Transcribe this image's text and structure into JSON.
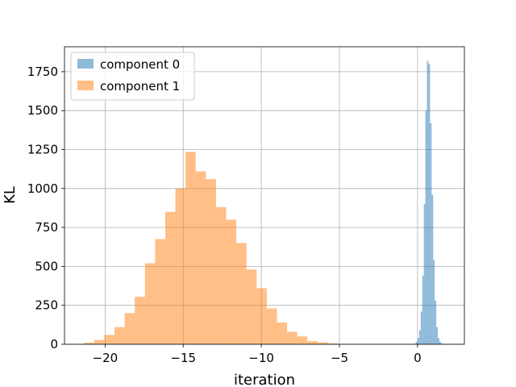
{
  "chart_data": {
    "type": "bar",
    "title": "",
    "xlabel": "iteration",
    "ylabel": "KL",
    "xlim": [
      -22.6,
      3.0
    ],
    "ylim": [
      0,
      1910
    ],
    "xticks": [
      -20,
      -15,
      -10,
      -5,
      0
    ],
    "xtick_labels": [
      "−20",
      "−15",
      "−10",
      "−5",
      "0"
    ],
    "yticks": [
      0,
      250,
      500,
      750,
      1000,
      1250,
      1500,
      1750
    ],
    "ytick_labels": [
      "0",
      "250",
      "500",
      "750",
      "1000",
      "1250",
      "1500",
      "1750"
    ],
    "grid": true,
    "legend_position": "upper left",
    "series": [
      {
        "name": "component 0",
        "color": "#1f77b4",
        "opacity": 0.5,
        "bin_edges": [
          -0.2,
          -0.1,
          0.0,
          0.1,
          0.2,
          0.3,
          0.4,
          0.5,
          0.6,
          0.7,
          0.8,
          0.9,
          1.0,
          1.1,
          1.2,
          1.3,
          1.4,
          1.5,
          1.6,
          1.7,
          1.8,
          1.9
        ],
        "values": [
          5,
          15,
          40,
          90,
          210,
          440,
          900,
          1500,
          1820,
          1800,
          1420,
          960,
          540,
          280,
          110,
          40,
          15,
          5,
          3,
          2,
          1
        ]
      },
      {
        "name": "component 1",
        "color": "#ff7f0e",
        "opacity": 0.5,
        "bin_edges": [
          -21.35,
          -20.7,
          -20.05,
          -19.4,
          -18.75,
          -18.1,
          -17.45,
          -16.8,
          -16.15,
          -15.5,
          -14.85,
          -14.2,
          -13.55,
          -12.9,
          -12.25,
          -11.6,
          -10.95,
          -10.3,
          -9.65,
          -9.0,
          -8.35,
          -7.7,
          -7.05,
          -6.4,
          -5.75,
          -5.1
        ],
        "values": [
          10,
          28,
          60,
          110,
          200,
          305,
          520,
          675,
          850,
          1000,
          1235,
          1110,
          1060,
          880,
          800,
          650,
          480,
          360,
          230,
          140,
          80,
          50,
          20,
          12,
          6
        ]
      }
    ]
  }
}
